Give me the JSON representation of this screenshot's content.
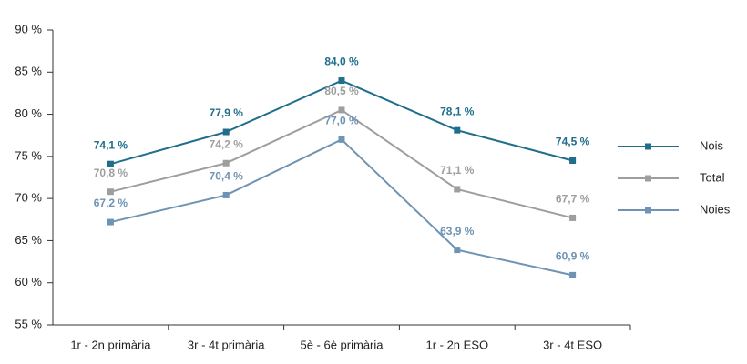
{
  "chart_data": {
    "type": "line",
    "categories": [
      "1r - 2n primària",
      "3r - 4t primària",
      "5è - 6è primària",
      "1r - 2n ESO",
      "3r - 4t ESO"
    ],
    "series": [
      {
        "name": "Nois",
        "color": "#1f6e8c",
        "values": [
          74.1,
          77.9,
          84.0,
          78.1,
          74.5
        ],
        "value_labels": [
          "74,1 %",
          "77,9 %",
          "84,0 %",
          "78,1 %",
          "74,5 %"
        ]
      },
      {
        "name": "Total",
        "color": "#9e9e9e",
        "values": [
          70.8,
          74.2,
          80.5,
          71.1,
          67.7
        ],
        "value_labels": [
          "70,8 %",
          "74,2 %",
          "80,5 %",
          "71,1 %",
          "67,7 %"
        ]
      },
      {
        "name": "Noies",
        "color": "#6f93b4",
        "values": [
          67.2,
          70.4,
          77.0,
          63.9,
          60.9
        ],
        "value_labels": [
          "67,2 %",
          "70,4 %",
          "77,0 %",
          "63,9 %",
          "60,9 %"
        ]
      }
    ],
    "ylim": [
      55,
      90
    ],
    "yticks": [
      {
        "value": 55,
        "label": "55 %"
      },
      {
        "value": 60,
        "label": "60 %"
      },
      {
        "value": 65,
        "label": "65 %"
      },
      {
        "value": 70,
        "label": "70 %"
      },
      {
        "value": 75,
        "label": "75 %"
      },
      {
        "value": 80,
        "label": "80 %"
      },
      {
        "value": 85,
        "label": "85 %"
      },
      {
        "value": 90,
        "label": "90 %"
      }
    ],
    "legend": "right"
  }
}
